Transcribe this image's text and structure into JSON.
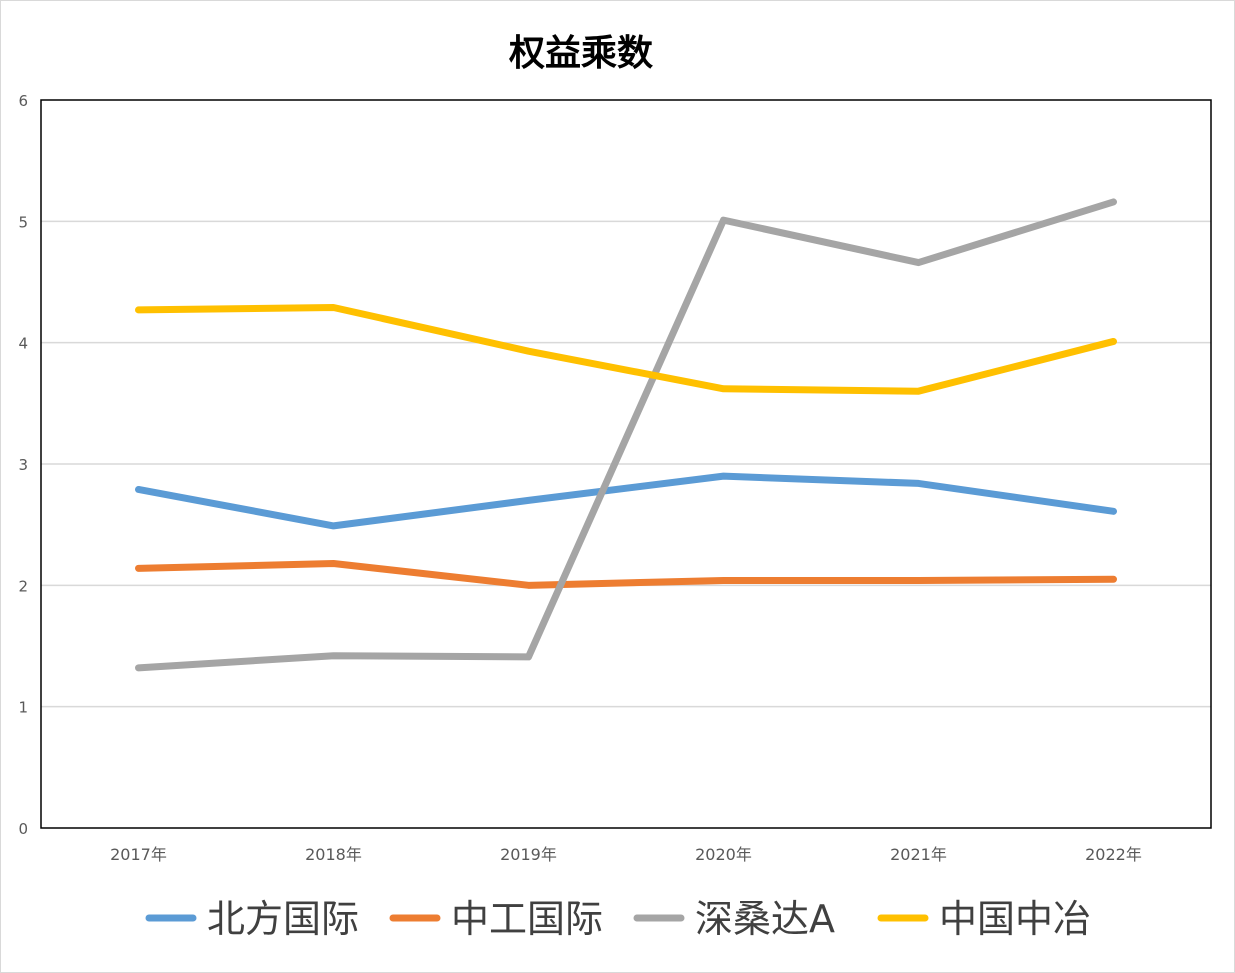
{
  "chart_data": {
    "type": "line",
    "title": "权益乘数",
    "xlabel": "",
    "ylabel": "",
    "categories": [
      "2017年",
      "2018年",
      "2019年",
      "2020年",
      "2021年",
      "2022年"
    ],
    "ylim": [
      0,
      6
    ],
    "yticks": [
      "0",
      "1",
      "2",
      "3",
      "4",
      "5",
      "6"
    ],
    "grid": true,
    "legend_position": "bottom",
    "series": [
      {
        "name": "北方国际",
        "color": "#5b9bd5",
        "values": [
          2.79,
          2.49,
          2.7,
          2.9,
          2.84,
          2.61
        ]
      },
      {
        "name": "中工国际",
        "color": "#ed7d31",
        "values": [
          2.14,
          2.18,
          2.0,
          2.04,
          2.04,
          2.05
        ]
      },
      {
        "name": "深桑达A",
        "color": "#a5a5a5",
        "values": [
          1.32,
          1.42,
          1.41,
          5.01,
          4.66,
          5.16
        ]
      },
      {
        "name": "中国中冶",
        "color": "#ffc000",
        "values": [
          4.27,
          4.29,
          3.93,
          3.62,
          3.6,
          4.01
        ]
      }
    ]
  }
}
